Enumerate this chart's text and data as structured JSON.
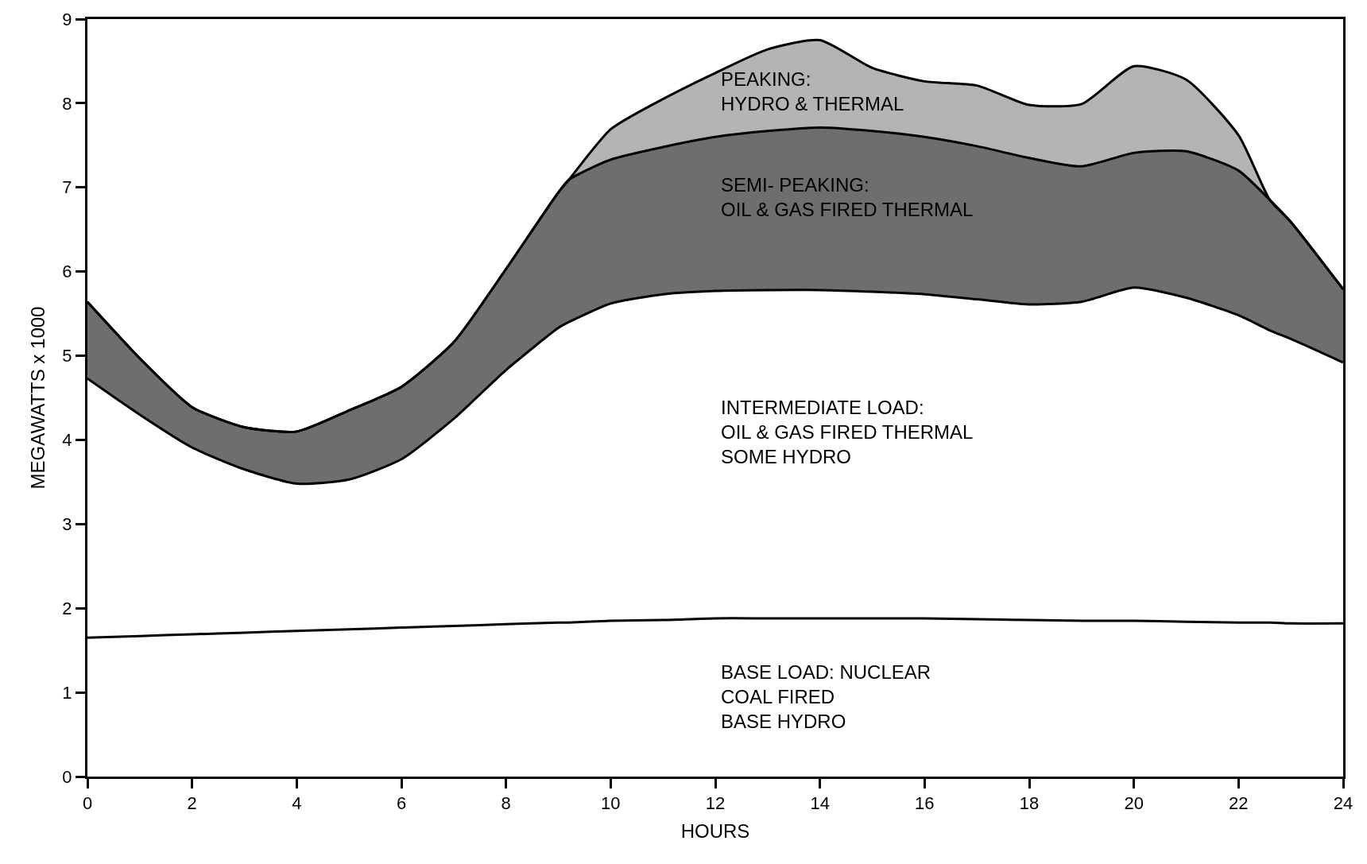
{
  "chart_data": {
    "type": "area",
    "xlabel": "HOURS",
    "ylabel": "MEGAWATTS x 1000",
    "x": [
      0,
      1,
      2,
      3,
      4,
      5,
      6,
      7,
      8,
      9,
      9.2,
      10,
      11,
      12,
      13,
      14,
      15,
      16,
      17,
      18,
      19,
      20,
      21,
      22,
      22.6,
      23,
      24
    ],
    "series": [
      {
        "color": "#ffffff",
        "values": [
          1.65,
          1.67,
          1.69,
          1.71,
          1.73,
          1.75,
          1.77,
          1.79,
          1.81,
          1.83,
          1.83,
          1.85,
          1.86,
          1.88,
          1.88,
          1.88,
          1.88,
          1.88,
          1.87,
          1.86,
          1.85,
          1.85,
          1.84,
          1.83,
          1.83,
          1.82,
          1.82
        ]
      },
      {
        "color": "#ffffff",
        "values": [
          4.73,
          4.3,
          3.91,
          3.65,
          3.48,
          3.53,
          3.77,
          4.25,
          4.83,
          5.33,
          5.4,
          5.62,
          5.73,
          5.77,
          5.78,
          5.78,
          5.76,
          5.73,
          5.67,
          5.61,
          5.64,
          5.81,
          5.69,
          5.48,
          5.3,
          5.2,
          4.92
        ]
      },
      {
        "color": "#6e6e6e",
        "values": [
          5.64,
          4.97,
          4.39,
          4.15,
          4.1,
          4.35,
          4.63,
          5.16,
          6.03,
          6.94,
          7.09,
          7.33,
          7.48,
          7.6,
          7.67,
          7.71,
          7.67,
          7.6,
          7.49,
          7.35,
          7.25,
          7.41,
          7.43,
          7.2,
          6.85,
          6.59,
          5.79
        ]
      },
      {
        "color": "#b4b4b4",
        "values": [
          5.64,
          4.97,
          4.39,
          4.15,
          4.1,
          4.35,
          4.63,
          5.16,
          6.03,
          6.94,
          7.09,
          7.69,
          8.05,
          8.36,
          8.64,
          8.75,
          8.42,
          8.26,
          8.21,
          7.98,
          7.99,
          8.44,
          8.28,
          7.62,
          6.85,
          6.59,
          5.79
        ]
      }
    ],
    "annotations": [
      "PEAKING:\nHYDRO & THERMAL",
      "SEMI- PEAKING:\nOIL & GAS FIRED THERMAL",
      "INTERMEDIATE LOAD:\nOIL & GAS FIRED THERMAL\nSOME HYDRO",
      "BASE LOAD: NUCLEAR\nCOAL FIRED\nBASE HYDRO"
    ],
    "xlim": [
      0,
      24
    ],
    "xticks": [
      0,
      2,
      4,
      6,
      8,
      10,
      12,
      14,
      16,
      18,
      20,
      22,
      24
    ],
    "ylim": [
      0,
      9
    ],
    "yticks": [
      0,
      1,
      2,
      3,
      4,
      5,
      6,
      7,
      8,
      9
    ]
  }
}
